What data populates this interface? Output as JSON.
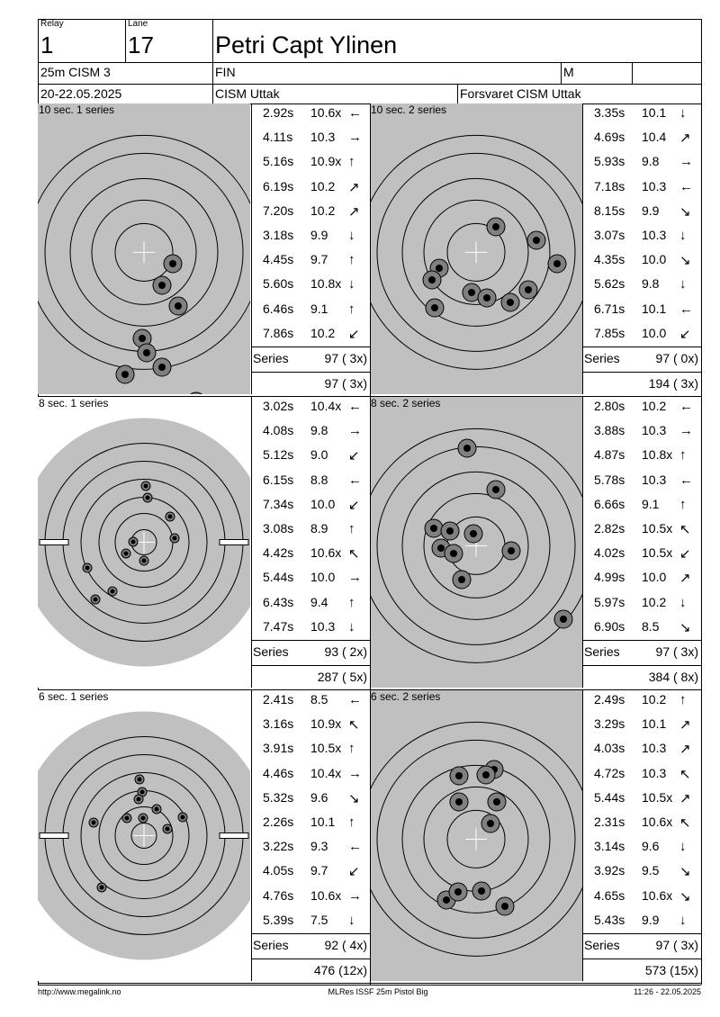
{
  "header": {
    "relay_label": "Relay",
    "relay_value": "1",
    "lane_label": "Lane",
    "lane_value": "17",
    "shooter": "Petri Capt Ylinen",
    "event": "25m CISM 3",
    "nation": "FIN",
    "gender": "M",
    "date": "20-22.05.2025",
    "competition": "CISM Uttak",
    "organizer": "Forsvaret CISM Uttak"
  },
  "series_label": "Series",
  "panels": [
    {
      "title": "10 sec. 1 series",
      "target_type": "precision",
      "shots": [
        {
          "time": "2.92s",
          "score": "10.6x",
          "arrow": "←"
        },
        {
          "time": "4.11s",
          "score": "10.3",
          "arrow": "→"
        },
        {
          "time": "5.16s",
          "score": "10.9x",
          "arrow": "↑"
        },
        {
          "time": "6.19s",
          "score": "10.2",
          "arrow": "↗"
        },
        {
          "time": "7.20s",
          "score": "10.2",
          "arrow": "↗"
        },
        {
          "time": "3.18s",
          "score": "9.9",
          "arrow": "↓"
        },
        {
          "time": "4.45s",
          "score": "9.7",
          "arrow": "↑"
        },
        {
          "time": "5.60s",
          "score": "10.8x",
          "arrow": "↓"
        },
        {
          "time": "6.46s",
          "score": "9.1",
          "arrow": "↑"
        },
        {
          "time": "7.86s",
          "score": "10.2",
          "arrow": "↙"
        }
      ],
      "series_total": "97 ( 3x)",
      "running_total": "97 ( 3x)"
    },
    {
      "title": "10 sec. 2 series",
      "target_type": "precision",
      "shots": [
        {
          "time": "3.35s",
          "score": "10.1",
          "arrow": "↓"
        },
        {
          "time": "4.69s",
          "score": "10.4",
          "arrow": "↗"
        },
        {
          "time": "5.93s",
          "score": "9.8",
          "arrow": "→"
        },
        {
          "time": "7.18s",
          "score": "10.3",
          "arrow": "←"
        },
        {
          "time": "8.15s",
          "score": "9.9",
          "arrow": "↘"
        },
        {
          "time": "3.07s",
          "score": "10.3",
          "arrow": "↓"
        },
        {
          "time": "4.35s",
          "score": "10.0",
          "arrow": "↘"
        },
        {
          "time": "5.62s",
          "score": "9.8",
          "arrow": "↓"
        },
        {
          "time": "6.71s",
          "score": "10.1",
          "arrow": "←"
        },
        {
          "time": "7.85s",
          "score": "10.0",
          "arrow": "↙"
        }
      ],
      "series_total": "97 ( 0x)",
      "running_total": "194 ( 3x)"
    },
    {
      "title": "8 sec. 1 series",
      "target_type": "rapid",
      "shots": [
        {
          "time": "3.02s",
          "score": "10.4x",
          "arrow": "←"
        },
        {
          "time": "4.08s",
          "score": "9.8",
          "arrow": "→"
        },
        {
          "time": "5.12s",
          "score": "9.0",
          "arrow": "↙"
        },
        {
          "time": "6.15s",
          "score": "8.8",
          "arrow": "←"
        },
        {
          "time": "7.34s",
          "score": "10.0",
          "arrow": "↙"
        },
        {
          "time": "3.08s",
          "score": "8.9",
          "arrow": "↑"
        },
        {
          "time": "4.42s",
          "score": "10.6x",
          "arrow": "↖"
        },
        {
          "time": "5.44s",
          "score": "10.0",
          "arrow": "→"
        },
        {
          "time": "6.43s",
          "score": "9.4",
          "arrow": "↑"
        },
        {
          "time": "7.47s",
          "score": "10.3",
          "arrow": "↓"
        }
      ],
      "series_total": "93 ( 2x)",
      "running_total": "287 ( 5x)"
    },
    {
      "title": "8 sec. 2 series",
      "target_type": "precision",
      "shots": [
        {
          "time": "2.80s",
          "score": "10.2",
          "arrow": "←"
        },
        {
          "time": "3.88s",
          "score": "10.3",
          "arrow": "→"
        },
        {
          "time": "4.87s",
          "score": "10.8x",
          "arrow": "↑"
        },
        {
          "time": "5.78s",
          "score": "10.3",
          "arrow": "←"
        },
        {
          "time": "6.66s",
          "score": "9.1",
          "arrow": "↑"
        },
        {
          "time": "2.82s",
          "score": "10.5x",
          "arrow": "↖"
        },
        {
          "time": "4.02s",
          "score": "10.5x",
          "arrow": "↙"
        },
        {
          "time": "4.99s",
          "score": "10.0",
          "arrow": "↗"
        },
        {
          "time": "5.97s",
          "score": "10.2",
          "arrow": "↓"
        },
        {
          "time": "6.90s",
          "score": "8.5",
          "arrow": "↘"
        }
      ],
      "series_total": "97 ( 3x)",
      "running_total": "384 ( 8x)"
    },
    {
      "title": "6 sec. 1 series",
      "target_type": "rapid",
      "shots": [
        {
          "time": "2.41s",
          "score": "8.5",
          "arrow": "←"
        },
        {
          "time": "3.16s",
          "score": "10.9x",
          "arrow": "↖"
        },
        {
          "time": "3.91s",
          "score": "10.5x",
          "arrow": "↑"
        },
        {
          "time": "4.46s",
          "score": "10.4x",
          "arrow": "→"
        },
        {
          "time": "5.32s",
          "score": "9.6",
          "arrow": "↘"
        },
        {
          "time": "2.26s",
          "score": "10.1",
          "arrow": "↑"
        },
        {
          "time": "3.22s",
          "score": "9.3",
          "arrow": "←"
        },
        {
          "time": "4.05s",
          "score": "9.7",
          "arrow": "↙"
        },
        {
          "time": "4.76s",
          "score": "10.6x",
          "arrow": "→"
        },
        {
          "time": "5.39s",
          "score": "7.5",
          "arrow": "↓"
        }
      ],
      "series_total": "92 ( 4x)",
      "running_total": "476 (12x)"
    },
    {
      "title": "6 sec. 2 series",
      "target_type": "precision",
      "shots": [
        {
          "time": "2.49s",
          "score": "10.2",
          "arrow": "↑"
        },
        {
          "time": "3.29s",
          "score": "10.1",
          "arrow": "↗"
        },
        {
          "time": "4.03s",
          "score": "10.3",
          "arrow": "↗"
        },
        {
          "time": "4.72s",
          "score": "10.3",
          "arrow": "↖"
        },
        {
          "time": "5.44s",
          "score": "10.5x",
          "arrow": "↗"
        },
        {
          "time": "2.31s",
          "score": "10.6x",
          "arrow": "↖"
        },
        {
          "time": "3.14s",
          "score": "9.6",
          "arrow": "↓"
        },
        {
          "time": "3.92s",
          "score": "9.5",
          "arrow": "↘"
        },
        {
          "time": "4.65s",
          "score": "10.6x",
          "arrow": "↘"
        },
        {
          "time": "5.43s",
          "score": "9.9",
          "arrow": "↓"
        }
      ],
      "series_total": "97 ( 3x)",
      "running_total": "573 (15x)"
    }
  ],
  "footer": {
    "url": "http://www.megalink.no",
    "program": "MLRes ISSF 25m Pistol Big",
    "timestamp": "11:26 - 22.05.2025"
  },
  "colors": {
    "target_bg": "#c0c0c0",
    "shot_ring": "#808080",
    "shot_core": "#000000"
  }
}
